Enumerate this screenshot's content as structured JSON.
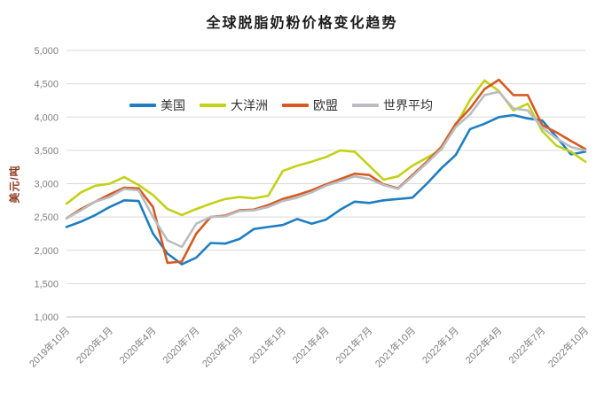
{
  "title": "全球脱脂奶粉价格变化趋势",
  "chart_data": {
    "type": "line",
    "title": "全球脱脂奶粉价格变化趋势",
    "xlabel": "",
    "ylabel": "美元/吨",
    "ylim": [
      1000,
      5000
    ],
    "ytick_step": 500,
    "ytick_labels": [
      "5,000",
      "4,500",
      "4,000",
      "3,500",
      "3,000",
      "2,500",
      "2,000",
      "1,500",
      "1,000"
    ],
    "xtick_labels": [
      "2019年10月",
      "2020年1月",
      "2020年4月",
      "2020年7月",
      "2020年10月",
      "2021年1月",
      "2021年4月",
      "2021年7月",
      "2021年10月",
      "2022年1月",
      "2022年4月",
      "2022年7月",
      "2022年10月"
    ],
    "x_frequency": "monthly",
    "x_start": "2019年10月",
    "x_end": "2022年10月",
    "grid": "horizontal",
    "legend_position": "inside-top-left",
    "colors": {
      "grid": "#d9d9d9",
      "axis": "#bfbfbf",
      "tick_text": "#808080",
      "title_text": "#1a1a1a",
      "y_axis_title_text": "#8f3a20"
    },
    "series": [
      {
        "name": "美国",
        "color": "#1f7ec2",
        "values": [
          2350,
          2430,
          2530,
          2650,
          2750,
          2740,
          2250,
          1950,
          1790,
          1890,
          2110,
          2100,
          2170,
          2320,
          2350,
          2380,
          2470,
          2400,
          2460,
          2610,
          2730,
          2710,
          2750,
          2770,
          2790,
          3000,
          3230,
          3430,
          3820,
          3900,
          4000,
          4030,
          3980,
          3950,
          3700,
          3440,
          3480
        ]
      },
      {
        "name": "大洋洲",
        "color": "#c3d117",
        "values": [
          2700,
          2870,
          2970,
          3000,
          3100,
          2980,
          2830,
          2620,
          2530,
          2620,
          2700,
          2770,
          2800,
          2780,
          2820,
          3190,
          3270,
          3330,
          3400,
          3500,
          3480,
          3270,
          3060,
          3110,
          3270,
          3390,
          3510,
          3870,
          4260,
          4550,
          4390,
          4100,
          4200,
          3790,
          3570,
          3480,
          3330
        ]
      },
      {
        "name": "欧盟",
        "color": "#d65a20",
        "values": [
          2480,
          2620,
          2730,
          2840,
          2940,
          2930,
          2650,
          1810,
          1830,
          2250,
          2500,
          2520,
          2600,
          2610,
          2680,
          2770,
          2830,
          2900,
          2990,
          3070,
          3150,
          3130,
          2990,
          2930,
          3130,
          3330,
          3550,
          3900,
          4130,
          4420,
          4560,
          4330,
          4330,
          3880,
          3770,
          3640,
          3520
        ]
      },
      {
        "name": "世界平均",
        "color": "#b9bdc1",
        "values": [
          2480,
          2600,
          2730,
          2800,
          2920,
          2900,
          2500,
          2150,
          2050,
          2400,
          2500,
          2510,
          2590,
          2600,
          2650,
          2740,
          2790,
          2870,
          2970,
          3040,
          3110,
          3070,
          2980,
          2920,
          3110,
          3310,
          3520,
          3850,
          4040,
          4330,
          4380,
          4130,
          4100,
          3840,
          3680,
          3550,
          3500
        ]
      }
    ]
  }
}
